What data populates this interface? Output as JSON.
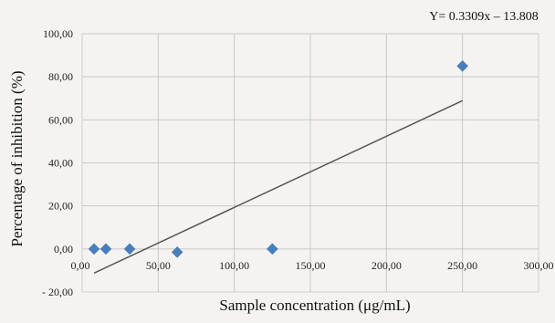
{
  "chart_data": {
    "type": "scatter",
    "equation": "Y= 0.3309x – 13.808",
    "xlabel": "Sample concentration (μg/mL)",
    "ylabel": "Percentage of inhibition (%)",
    "xlim": [
      0,
      300
    ],
    "ylim": [
      -20,
      100
    ],
    "x_ticks": [
      0,
      50,
      100,
      150,
      200,
      250,
      300
    ],
    "x_tick_labels": [
      "0,00",
      "50,00",
      "100,00",
      "150,00",
      "200,00",
      "250,00",
      "300,00"
    ],
    "y_ticks": [
      -20,
      0,
      20,
      40,
      60,
      80,
      100
    ],
    "y_tick_labels": [
      "- 20,00",
      "0,00",
      "20,00",
      "40,00",
      "60,00",
      "80,00",
      "100,00"
    ],
    "grid": true,
    "series": [
      {
        "x": [
          7.8,
          15.6,
          31.25,
          62.5,
          125,
          250
        ],
        "y": [
          0,
          0,
          0,
          -1.5,
          0,
          85
        ],
        "marker": "diamond",
        "color": "#4a7ebb"
      }
    ],
    "trendline": {
      "slope": 0.3309,
      "intercept": -13.808,
      "x_range": [
        7.8,
        250
      ],
      "color": "#555555"
    }
  }
}
